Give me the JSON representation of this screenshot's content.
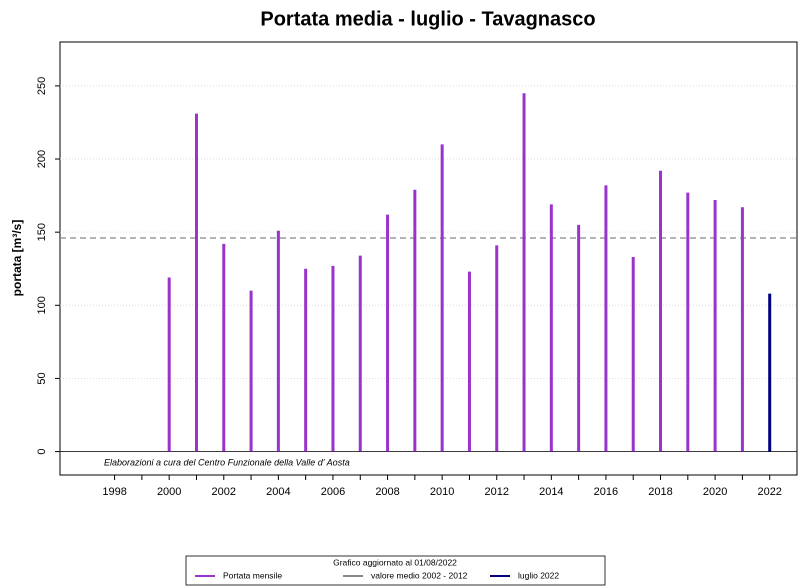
{
  "chart_data": {
    "type": "bar",
    "title": "Portata media -  luglio - Tavagnasco",
    "y_label": "portata [m³/s]",
    "annotation": "Elaborazioni a cura del Centro Funzionale della Valle d' Aosta",
    "legend_title": "Grafico aggiornato al 01/08/2022",
    "legend": "bottom",
    "grid": true,
    "xlim": [
      1996,
      2023
    ],
    "xticks": [
      1998,
      2000,
      2002,
      2004,
      2006,
      2008,
      2010,
      2012,
      2014,
      2016,
      2018,
      2020,
      2022
    ],
    "ylim": [
      -16,
      280
    ],
    "yticks": [
      0,
      50,
      100,
      150,
      200,
      250
    ],
    "series": [
      {
        "name": "Portata mensile",
        "color": "#9933cc",
        "x": [
          2000,
          2001,
          2002,
          2003,
          2004,
          2005,
          2006,
          2007,
          2008,
          2009,
          2010,
          2011,
          2012,
          2013,
          2014,
          2015,
          2016,
          2017,
          2018,
          2019,
          2020,
          2021
        ],
        "values": [
          119,
          231,
          142,
          110,
          151,
          125,
          127,
          134,
          162,
          179,
          210,
          123,
          141,
          245,
          169,
          155,
          182,
          133,
          192,
          177,
          172,
          167
        ]
      },
      {
        "name": "luglio 2022",
        "color": "#000080",
        "x": [
          2022
        ],
        "values": [
          108
        ]
      }
    ],
    "mean_line": {
      "name": "valore medio  2002 - 2012",
      "value": 146,
      "color": "#888888"
    }
  }
}
